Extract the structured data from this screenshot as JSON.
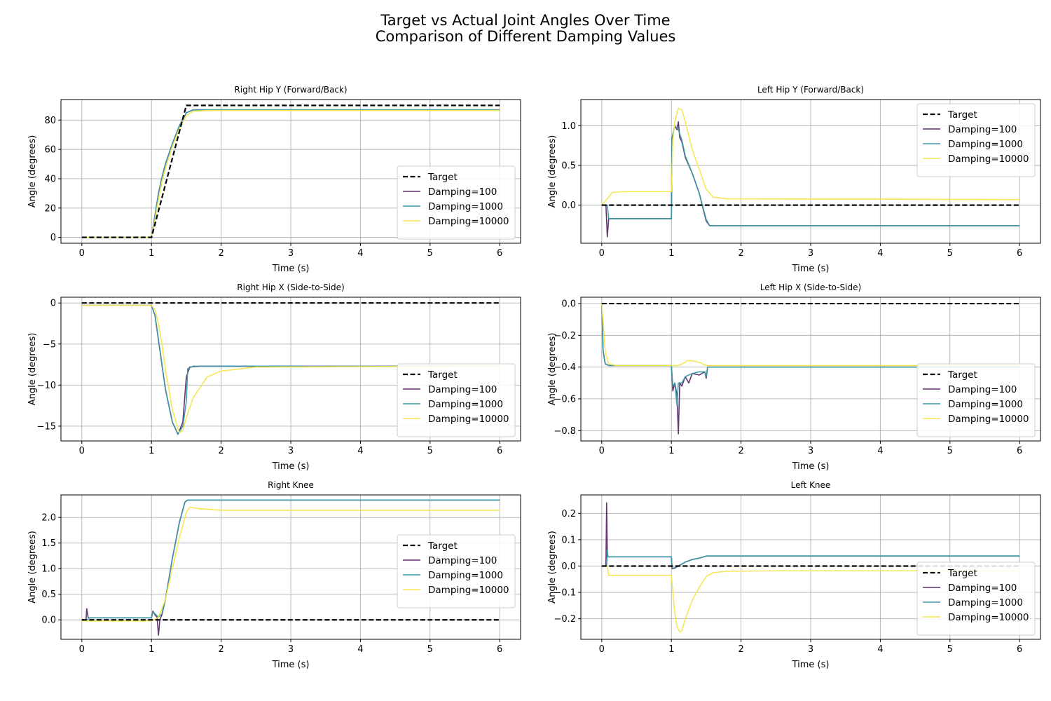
{
  "figure": {
    "title_line1": "Target vs Actual Joint Angles Over Time",
    "title_line2": "Comparison of Different Damping Values"
  },
  "series_styles": {
    "Target": {
      "color": "#000000",
      "dash": true,
      "width": 2.2
    },
    "Damping=100": {
      "color": "#5e2b6b",
      "dash": false,
      "width": 1.6
    },
    "Damping=1000": {
      "color": "#3a9aa5",
      "dash": false,
      "width": 1.6
    },
    "Damping=10000": {
      "color": "#f5e64f",
      "dash": false,
      "width": 1.6
    }
  },
  "chart_data": [
    {
      "type": "line",
      "title": "Right Hip Y (Forward/Back)",
      "xlabel": "Time (s)",
      "ylabel": "Angle (degrees)",
      "xlim": [
        -0.3,
        6.3
      ],
      "ylim": [
        -4,
        94
      ],
      "xticks": [
        0,
        1,
        2,
        3,
        4,
        5,
        6
      ],
      "yticks": [
        0,
        20,
        40,
        60,
        80
      ],
      "grid": true,
      "legend": "lower-right",
      "series": [
        {
          "name": "Target",
          "x": [
            0,
            1,
            1.5,
            6
          ],
          "y": [
            0,
            0,
            90,
            90
          ]
        },
        {
          "name": "Damping=100",
          "x": [
            0,
            1.0,
            1.05,
            1.1,
            1.15,
            1.2,
            1.3,
            1.4,
            1.5,
            1.6,
            2.0,
            6
          ],
          "y": [
            0,
            0,
            15,
            30,
            41,
            50,
            64,
            76,
            85,
            87,
            87,
            87
          ]
        },
        {
          "name": "Damping=1000",
          "x": [
            0,
            1.0,
            1.05,
            1.1,
            1.15,
            1.2,
            1.3,
            1.4,
            1.5,
            1.6,
            2.0,
            6
          ],
          "y": [
            0,
            0,
            15,
            30,
            41,
            50,
            64,
            76,
            85,
            87,
            87,
            87
          ]
        },
        {
          "name": "Damping=10000",
          "x": [
            0,
            1.0,
            1.05,
            1.1,
            1.15,
            1.2,
            1.3,
            1.4,
            1.5,
            1.6,
            1.8,
            6
          ],
          "y": [
            0,
            0,
            12,
            26,
            38,
            47,
            62,
            74,
            83,
            86,
            86.5,
            86.5
          ]
        }
      ]
    },
    {
      "type": "line",
      "title": "Left Hip Y (Forward/Back)",
      "xlabel": "Time (s)",
      "ylabel": "Angle (degrees)",
      "xlim": [
        -0.3,
        6.3
      ],
      "ylim": [
        -0.48,
        1.33
      ],
      "xticks": [
        0,
        1,
        2,
        3,
        4,
        5,
        6
      ],
      "yticks": [
        0.0,
        0.5,
        1.0
      ],
      "grid": true,
      "legend": "upper-right",
      "series": [
        {
          "name": "Target",
          "x": [
            0,
            6
          ],
          "y": [
            0,
            0
          ]
        },
        {
          "name": "Damping=100",
          "x": [
            0,
            0.06,
            0.08,
            0.1,
            1.0,
            1.01,
            1.05,
            1.08,
            1.1,
            1.12,
            1.15,
            1.2,
            1.3,
            1.4,
            1.5,
            1.55,
            6
          ],
          "y": [
            0,
            0,
            -0.4,
            -0.17,
            -0.17,
            0.85,
            1.0,
            0.95,
            1.05,
            0.85,
            0.8,
            0.6,
            0.4,
            0.15,
            -0.2,
            -0.26,
            -0.26
          ]
        },
        {
          "name": "Damping=1000",
          "x": [
            0,
            0.08,
            0.1,
            1.0,
            1.01,
            1.05,
            1.1,
            1.15,
            1.2,
            1.3,
            1.4,
            1.5,
            1.55,
            6
          ],
          "y": [
            0,
            0,
            -0.17,
            -0.17,
            0.85,
            1.0,
            0.95,
            0.82,
            0.62,
            0.4,
            0.15,
            -0.18,
            -0.26,
            -0.26
          ]
        },
        {
          "name": "Damping=10000",
          "x": [
            0,
            0.1,
            0.15,
            0.3,
            1.0,
            1.02,
            1.05,
            1.1,
            1.15,
            1.2,
            1.3,
            1.4,
            1.5,
            1.6,
            1.8,
            6
          ],
          "y": [
            0,
            0.1,
            0.16,
            0.17,
            0.17,
            0.8,
            1.05,
            1.22,
            1.2,
            1.05,
            0.7,
            0.45,
            0.2,
            0.1,
            0.08,
            0.07
          ]
        }
      ]
    },
    {
      "type": "line",
      "title": "Right Hip X (Side-to-Side)",
      "xlabel": "Time (s)",
      "ylabel": "Angle (degrees)",
      "xlim": [
        -0.3,
        6.3
      ],
      "ylim": [
        -16.8,
        0.7
      ],
      "xticks": [
        0,
        1,
        2,
        3,
        4,
        5,
        6
      ],
      "yticks": [
        -15,
        -10,
        -5,
        0
      ],
      "grid": true,
      "legend": "lower-right",
      "series": [
        {
          "name": "Target",
          "x": [
            0,
            6
          ],
          "y": [
            0,
            0
          ]
        },
        {
          "name": "Damping=100",
          "x": [
            0,
            0.05,
            1.0,
            1.05,
            1.1,
            1.15,
            1.2,
            1.3,
            1.38,
            1.45,
            1.5,
            1.55,
            1.7,
            6
          ],
          "y": [
            -0.3,
            -0.3,
            -0.3,
            -1.5,
            -4.5,
            -7.5,
            -10.5,
            -14.5,
            -16.0,
            -14.5,
            -9,
            -7.8,
            -7.7,
            -7.7
          ]
        },
        {
          "name": "Damping=1000",
          "x": [
            0,
            0.05,
            1.0,
            1.05,
            1.1,
            1.15,
            1.2,
            1.3,
            1.38,
            1.45,
            1.5,
            1.52,
            1.6,
            6
          ],
          "y": [
            -0.3,
            -0.3,
            -0.3,
            -1.5,
            -4.5,
            -7.5,
            -10.5,
            -14.5,
            -16.0,
            -15.0,
            -12,
            -8.0,
            -7.7,
            -7.7
          ]
        },
        {
          "name": "Damping=10000",
          "x": [
            0,
            0.05,
            1.0,
            1.05,
            1.1,
            1.15,
            1.2,
            1.3,
            1.4,
            1.45,
            1.5,
            1.6,
            1.8,
            2.0,
            2.5,
            6
          ],
          "y": [
            -0.3,
            -0.3,
            -0.3,
            -0.8,
            -2.5,
            -5.0,
            -8.0,
            -13.0,
            -15.8,
            -15.5,
            -14,
            -11.5,
            -9.0,
            -8.3,
            -7.8,
            -7.7
          ]
        }
      ]
    },
    {
      "type": "line",
      "title": "Left Hip X (Side-to-Side)",
      "xlabel": "Time (s)",
      "ylabel": "Angle (degrees)",
      "xlim": [
        -0.3,
        6.3
      ],
      "ylim": [
        -0.865,
        0.04
      ],
      "xticks": [
        0,
        1,
        2,
        3,
        4,
        5,
        6
      ],
      "yticks": [
        -0.8,
        -0.6,
        -0.4,
        -0.2,
        0.0
      ],
      "grid": true,
      "legend": "lower-right",
      "series": [
        {
          "name": "Target",
          "x": [
            0,
            6
          ],
          "y": [
            0,
            0
          ]
        },
        {
          "name": "Damping=100",
          "x": [
            0,
            0.02,
            0.05,
            0.1,
            1.0,
            1.02,
            1.05,
            1.08,
            1.1,
            1.12,
            1.15,
            1.2,
            1.25,
            1.3,
            1.4,
            1.48,
            1.5,
            1.52,
            6
          ],
          "y": [
            0,
            -0.3,
            -0.38,
            -0.39,
            -0.39,
            -0.55,
            -0.5,
            -0.58,
            -0.82,
            -0.5,
            -0.52,
            -0.46,
            -0.5,
            -0.44,
            -0.45,
            -0.43,
            -0.47,
            -0.4,
            -0.4
          ]
        },
        {
          "name": "Damping=1000",
          "x": [
            0,
            0.02,
            0.05,
            0.1,
            1.0,
            1.02,
            1.05,
            1.08,
            1.1,
            1.15,
            1.2,
            1.3,
            1.4,
            1.48,
            1.5,
            1.52,
            6
          ],
          "y": [
            0,
            -0.3,
            -0.38,
            -0.39,
            -0.39,
            -0.52,
            -0.5,
            -0.64,
            -0.5,
            -0.5,
            -0.46,
            -0.44,
            -0.43,
            -0.43,
            -0.46,
            -0.4,
            -0.4
          ]
        },
        {
          "name": "Damping=10000",
          "x": [
            0,
            0.05,
            0.1,
            0.2,
            1.0,
            1.1,
            1.2,
            1.22,
            1.3,
            1.4,
            1.5,
            1.6,
            6
          ],
          "y": [
            0,
            -0.3,
            -0.38,
            -0.39,
            -0.39,
            -0.39,
            -0.37,
            -0.36,
            -0.36,
            -0.37,
            -0.39,
            -0.39,
            -0.39
          ]
        }
      ]
    },
    {
      "type": "line",
      "title": "Right Knee",
      "xlabel": "Time (s)",
      "ylabel": "Angle (degrees)",
      "xlim": [
        -0.3,
        6.3
      ],
      "ylim": [
        -0.38,
        2.44
      ],
      "xticks": [
        0,
        1,
        2,
        3,
        4,
        5,
        6
      ],
      "yticks": [
        0.0,
        0.5,
        1.0,
        1.5,
        2.0
      ],
      "grid": true,
      "legend": "center-right",
      "series": [
        {
          "name": "Target",
          "x": [
            0,
            6
          ],
          "y": [
            0,
            0
          ]
        },
        {
          "name": "Damping=100",
          "x": [
            0,
            0.06,
            0.07,
            0.09,
            0.1,
            1.0,
            1.02,
            1.05,
            1.08,
            1.1,
            1.12,
            1.15,
            1.2,
            1.3,
            1.4,
            1.48,
            1.52,
            6
          ],
          "y": [
            0,
            0,
            0.22,
            0.05,
            0.04,
            0.04,
            0.17,
            0.1,
            0.05,
            -0.3,
            0.0,
            0.1,
            0.4,
            1.2,
            1.9,
            2.3,
            2.34,
            2.34
          ]
        },
        {
          "name": "Damping=1000",
          "x": [
            0,
            0.08,
            0.1,
            1.0,
            1.02,
            1.05,
            1.1,
            1.15,
            1.2,
            1.3,
            1.4,
            1.48,
            1.52,
            6
          ],
          "y": [
            0,
            0,
            0.04,
            0.04,
            0.15,
            0.12,
            0.05,
            0.12,
            0.4,
            1.2,
            1.9,
            2.3,
            2.34,
            2.34
          ]
        },
        {
          "name": "Damping=10000",
          "x": [
            0,
            0.1,
            1.0,
            1.1,
            1.2,
            1.3,
            1.4,
            1.5,
            1.55,
            1.7,
            2.0,
            6
          ],
          "y": [
            -0.02,
            -0.02,
            -0.02,
            0.05,
            0.4,
            1.0,
            1.6,
            2.1,
            2.2,
            2.17,
            2.14,
            2.14
          ]
        }
      ]
    },
    {
      "type": "line",
      "title": "Left Knee",
      "xlabel": "Time (s)",
      "ylabel": "Angle (degrees)",
      "xlim": [
        -0.3,
        6.3
      ],
      "ylim": [
        -0.278,
        0.27
      ],
      "xticks": [
        0,
        1,
        2,
        3,
        4,
        5,
        6
      ],
      "yticks": [
        -0.2,
        -0.1,
        0.0,
        0.1,
        0.2
      ],
      "grid": true,
      "legend": "lower-right",
      "series": [
        {
          "name": "Target",
          "x": [
            0,
            6
          ],
          "y": [
            0,
            0
          ]
        },
        {
          "name": "Damping=100",
          "x": [
            0,
            0.06,
            0.07,
            0.08,
            0.09,
            1.0,
            1.01,
            1.05,
            1.1,
            1.2,
            1.3,
            1.4,
            1.5,
            6
          ],
          "y": [
            0,
            0,
            0.24,
            0.04,
            0.035,
            0.035,
            -0.01,
            -0.008,
            0.0,
            0.015,
            0.025,
            0.03,
            0.038,
            0.038
          ]
        },
        {
          "name": "Damping=1000",
          "x": [
            0,
            0.07,
            0.08,
            0.09,
            1.0,
            1.01,
            1.05,
            1.1,
            1.2,
            1.3,
            1.4,
            1.5,
            6
          ],
          "y": [
            0,
            0,
            0.06,
            0.035,
            0.035,
            -0.008,
            -0.006,
            0.0,
            0.015,
            0.025,
            0.03,
            0.038,
            0.038
          ]
        },
        {
          "name": "Damping=10000",
          "x": [
            0,
            0.08,
            0.1,
            1.0,
            1.02,
            1.05,
            1.08,
            1.12,
            1.15,
            1.2,
            1.3,
            1.4,
            1.5,
            1.6,
            1.8,
            2.5,
            6
          ],
          "y": [
            0,
            0,
            -0.035,
            -0.035,
            -0.1,
            -0.18,
            -0.23,
            -0.25,
            -0.245,
            -0.2,
            -0.13,
            -0.08,
            -0.04,
            -0.025,
            -0.02,
            -0.018,
            -0.018
          ]
        }
      ]
    }
  ]
}
